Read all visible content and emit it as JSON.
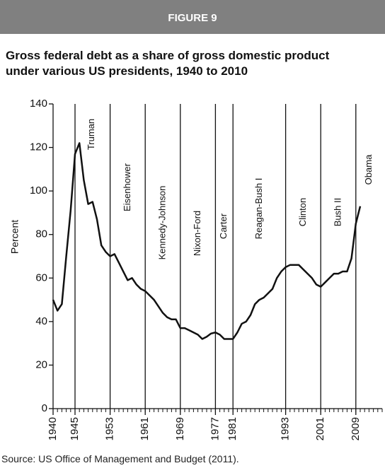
{
  "header": "FIGURE 9",
  "source": "Source: US Office of Management and Budget (2011).",
  "chart_data": {
    "type": "line",
    "title": "Gross federal debt as a share of gross domestic product under various US presidents, 1940 to 2010",
    "y_label": "Percent",
    "x": [
      1940,
      1941,
      1942,
      1943,
      1944,
      1945,
      1946,
      1947,
      1948,
      1949,
      1950,
      1951,
      1952,
      1953,
      1954,
      1955,
      1956,
      1957,
      1958,
      1959,
      1960,
      1961,
      1962,
      1963,
      1964,
      1965,
      1966,
      1967,
      1968,
      1969,
      1970,
      1971,
      1972,
      1973,
      1974,
      1975,
      1976,
      1977,
      1978,
      1979,
      1980,
      1981,
      1982,
      1983,
      1984,
      1985,
      1986,
      1987,
      1988,
      1989,
      1990,
      1991,
      1992,
      1993,
      1994,
      1995,
      1996,
      1997,
      1998,
      1999,
      2000,
      2001,
      2002,
      2003,
      2004,
      2005,
      2006,
      2007,
      2008,
      2009,
      2010
    ],
    "series": [
      {
        "name": "Gross federal debt",
        "color": "#111111",
        "values": [
          50,
          45,
          48,
          70,
          91,
          117,
          122,
          105,
          94,
          95,
          87,
          75,
          72,
          70,
          71,
          67,
          63,
          59,
          60,
          57,
          55,
          54,
          52,
          50,
          47,
          44,
          42,
          41,
          41,
          37,
          37,
          36,
          35,
          34,
          32,
          33,
          34.5,
          35,
          34,
          32,
          32,
          32,
          35,
          39,
          40,
          43,
          48,
          50,
          51,
          53,
          55,
          60,
          63,
          65,
          66,
          66,
          66,
          64,
          62,
          60,
          57,
          56,
          58,
          60,
          62,
          62,
          63,
          63,
          69,
          85,
          93
        ]
      }
    ],
    "xlim": [
      1940,
      2015
    ],
    "ylim": [
      0,
      140
    ],
    "yticks": [
      0,
      20,
      40,
      60,
      80,
      100,
      120,
      140
    ],
    "xticks": [
      1940,
      1945,
      1953,
      1961,
      1969,
      1977,
      1981,
      1993,
      2001,
      2009
    ],
    "xminorticks": [
      1940,
      1941,
      1942,
      1943,
      1944,
      1945,
      1946,
      1947,
      1948,
      1949,
      1950,
      1951,
      1952,
      1953,
      1954,
      1955,
      1956,
      1957,
      1958,
      1959,
      1960,
      1961,
      1962,
      1963,
      1964,
      1965,
      1966,
      1967,
      1968,
      1969,
      1970,
      1971,
      1972,
      1973,
      1974,
      1975,
      1976,
      1977,
      1978,
      1979,
      1980,
      1981,
      1982,
      1983,
      1984,
      1985,
      1986,
      1987,
      1988,
      1989,
      1990,
      1991,
      1992,
      1993,
      1994,
      1995,
      1996,
      1997,
      1998,
      1999,
      2000,
      2001,
      2002,
      2003,
      2004,
      2005,
      2006,
      2007,
      2008,
      2009,
      2010,
      2011,
      2012,
      2013,
      2014,
      2015
    ],
    "eras": [
      {
        "label": "Truman",
        "start": 1945
      },
      {
        "label": "Eisenhower",
        "start": 1953
      },
      {
        "label": "Kennedy-Johnson",
        "start": 1961
      },
      {
        "label": "Nixon-Ford",
        "start": 1969
      },
      {
        "label": "Carter",
        "start": 1977
      },
      {
        "label": "Reagan-Bush I",
        "start": 1981
      },
      {
        "label": "Clinton",
        "start": 1993
      },
      {
        "label": "Bush II",
        "start": 2001
      },
      {
        "label": "Obama",
        "start": 2009
      }
    ]
  }
}
